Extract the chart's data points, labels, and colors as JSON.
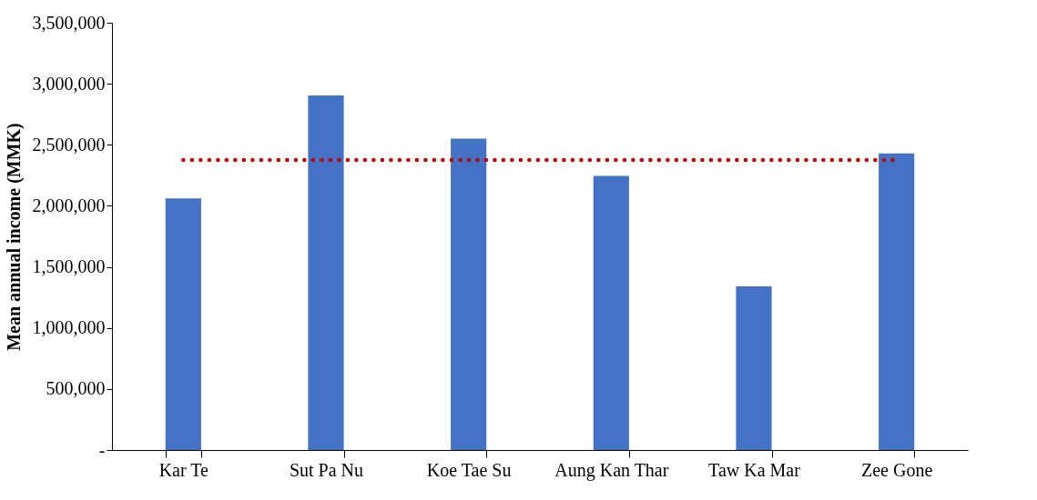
{
  "chart_data": {
    "type": "bar",
    "ylabel": "Mean annual income (MMK)",
    "categories": [
      "Kar Te",
      "Sut Pa Nu",
      "Koe Tae Su",
      "Aung Kan Thar",
      "Taw Ka Mar",
      "Zee Gone"
    ],
    "values": [
      2060000,
      2905000,
      2550000,
      2245000,
      1340000,
      2430000
    ],
    "color": "#4472c4",
    "ylim": [
      0,
      3500000
    ],
    "yticks": [
      {
        "value": 0,
        "label": "-"
      },
      {
        "value": 500000,
        "label": "500,000"
      },
      {
        "value": 1000000,
        "label": "1,000,000"
      },
      {
        "value": 1500000,
        "label": "1,500,000"
      },
      {
        "value": 2000000,
        "label": "2,000,000"
      },
      {
        "value": 2500000,
        "label": "2,500,000"
      },
      {
        "value": 3000000,
        "label": "3,000,000"
      },
      {
        "value": 3500000,
        "label": "3,500,000"
      }
    ],
    "ref_lines": [
      {
        "axis": "y",
        "value": 2375000,
        "color": "#c00000",
        "line_style": "dotted"
      }
    ],
    "grid": false
  }
}
